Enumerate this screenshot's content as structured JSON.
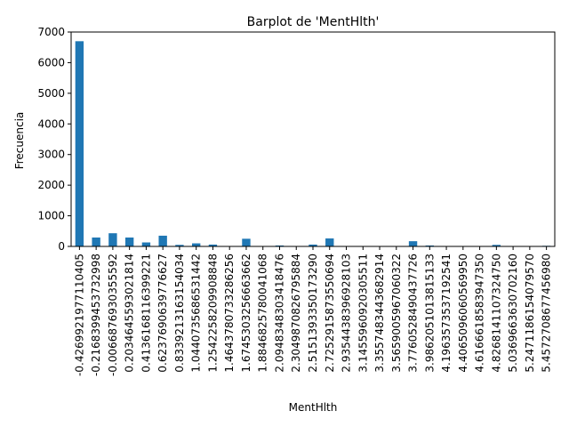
{
  "chart_data": {
    "type": "bar",
    "title": "Barplot de 'MentHlth'",
    "xlabel": "MentHlth",
    "ylabel": "Frecuencia",
    "ylim": [
      0,
      7000
    ],
    "yticks": [
      0,
      1000,
      2000,
      3000,
      4000,
      5000,
      6000,
      7000
    ],
    "grid": false,
    "legend": "none",
    "bar_color": "#1f77b4",
    "categories": [
      "-0.426992197711040​5",
      "-0.2168399453732998",
      "-0.006687693035559​2",
      "0.2034645593021814",
      "0.4136168116399221",
      "0.6237690639776627",
      "0.8339213163154034",
      "1.0440735686531442",
      "1.2542258209908848",
      "1.4643780733286256",
      "1.6745303256663662",
      "1.8846825780041068",
      "2.0948348303418476",
      "2.3049870826795884",
      "2.515139335017329",
      "2.7252915873550694",
      "2.935443839692810​3",
      "3.1455960920305511",
      "3.3557483443682914",
      "3.5659005967060322",
      "3.7760528490437726",
      "3.9862051013815133",
      "4.1963573537192541",
      "4.4065096060569950",
      "4.6166618583947350",
      "4.8268141107324750",
      "5.0369663630702160",
      "5.2471186154079570",
      "5.4572708677456980"
    ],
    "tick_labels": [
      "-0.4269921977110405",
      "-0.2168399453732998",
      "-0.006687693035559​2",
      "0.2034645593021814",
      "0.4136168116399221",
      "0.6237690639776627",
      "0.8339213163154034",
      "1.0440735686531442",
      "1.2542258209908848",
      "1.4643780733286256",
      "1.6745303256663662",
      "1.8846825780041068",
      "2.0948348303418476",
      "2.3049870826795884",
      "2.5151393350173290",
      "2.7252915873550694",
      "2.935443839692810​3",
      "3.1455960920305511",
      "3.3557483443682914",
      "3.5659005967060322",
      "3.7760528490437726",
      "3.9862051013815133",
      "4.1963573537192541",
      "4.4065096060569950",
      "4.6166618583947350",
      "4.8268141107324750",
      "5.0369663630702160",
      "5.2471186154079570",
      "5.4572708677456980"
    ],
    "values": [
      6700,
      290,
      430,
      290,
      130,
      350,
      50,
      100,
      60,
      10,
      250,
      10,
      30,
      5,
      60,
      260,
      5,
      5,
      5,
      5,
      170,
      30,
      5,
      5,
      5,
      50,
      5,
      5,
      20
    ]
  }
}
